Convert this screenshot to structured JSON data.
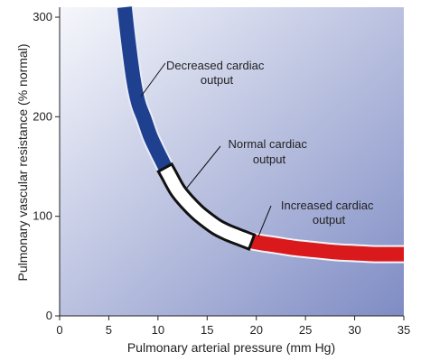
{
  "chart_data": {
    "type": "line",
    "xlabel": "Pulmonary arterial pressure (mm Hg)",
    "ylabel": "Pulmonary vascular resistance (% normal)",
    "xlim": [
      0,
      35
    ],
    "ylim": [
      0,
      310
    ],
    "xticks": [
      0,
      5,
      10,
      15,
      20,
      25,
      30,
      35
    ],
    "yticks": [
      0,
      100,
      200,
      300
    ],
    "grid": false,
    "colors": {
      "background_light": "#f6f7fc",
      "background_dark": "#7f8cc4",
      "decreased": "#1f3f8f",
      "normal_fill": "#ffffff",
      "normal_stroke": "#111111",
      "increased": "#d9191c"
    },
    "series": [
      {
        "name": "Decreased cardiac output",
        "color": "#1f3f8f",
        "x": [
          6.6,
          7.0,
          7.5,
          8.0,
          8.6,
          9.2,
          9.8,
          10.5,
          11.1
        ],
        "y": [
          310,
          275,
          238,
          214,
          198,
          181,
          168,
          154,
          142
        ]
      },
      {
        "name": "Normal cardiac output",
        "color": "#ffffff",
        "x": [
          11.1,
          12.0,
          13.0,
          14.0,
          15.0,
          16.0,
          17.0,
          18.0,
          18.8
        ],
        "y": [
          142,
          126,
          114,
          104,
          96,
          89,
          84,
          80,
          77
        ]
      },
      {
        "name": "Increased cardiac output",
        "color": "#d9191c",
        "x": [
          18.8,
          20,
          22,
          24,
          26,
          28,
          30,
          32,
          33,
          35
        ],
        "y": [
          77,
          74,
          71,
          68,
          66,
          64,
          63,
          62,
          62,
          62
        ]
      }
    ],
    "annotations": [
      {
        "line1": "Decreased cardiac",
        "line2": "output"
      },
      {
        "line1": "Normal cardiac",
        "line2": "output"
      },
      {
        "line1": "Increased cardiac",
        "line2": "output"
      }
    ]
  }
}
